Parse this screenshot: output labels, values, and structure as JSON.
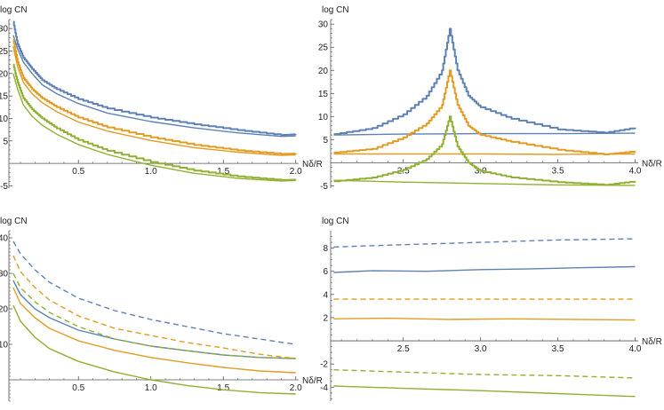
{
  "colors": {
    "blue": "#5e81b5",
    "orange": "#e19c24",
    "green": "#8fb032",
    "axis": "#555555"
  },
  "chart_data": [
    {
      "type": "line",
      "panel": "top-left",
      "title": "",
      "xlabel": "Nδ/R",
      "ylabel": "log CN",
      "xlim": [
        0.02,
        2.02
      ],
      "ylim": [
        -5.5,
        32
      ],
      "xticks": [
        0.5,
        1.0,
        1.5,
        2.0
      ],
      "xticklabels": [
        "0.5",
        "1.0",
        "1.5",
        "2.0"
      ],
      "yticks": [
        -5,
        5,
        10,
        15,
        20,
        25,
        30
      ],
      "yticklabels": [
        "-5",
        "5",
        "10",
        "15",
        "20",
        "25",
        "30"
      ],
      "grid": false,
      "legend": "none",
      "series": [
        {
          "color": "blue",
          "style": "step",
          "x": [
            0.05,
            0.08,
            0.12,
            0.18,
            0.25,
            0.35,
            0.5,
            0.7,
            1.0,
            1.3,
            1.6,
            1.9,
            2.0
          ],
          "y": [
            31.5,
            26.5,
            23.5,
            21,
            18.5,
            16.5,
            14.3,
            12.2,
            10.2,
            8.7,
            7.4,
            6.3,
            6.5
          ]
        },
        {
          "color": "blue",
          "style": "solid",
          "x": [
            0.05,
            0.08,
            0.12,
            0.18,
            0.25,
            0.35,
            0.5,
            0.7,
            1.0,
            1.3,
            1.6,
            1.9,
            2.0
          ],
          "y": [
            28.5,
            25.5,
            22.5,
            20,
            17.5,
            15.5,
            13.3,
            11.2,
            9.3,
            7.9,
            6.8,
            6.0,
            6.1
          ]
        },
        {
          "color": "orange",
          "style": "step",
          "x": [
            0.05,
            0.08,
            0.12,
            0.18,
            0.25,
            0.35,
            0.5,
            0.7,
            1.0,
            1.3,
            1.6,
            1.9,
            2.0
          ],
          "y": [
            27.5,
            22.5,
            19,
            16.5,
            14.5,
            12.5,
            10.2,
            8.0,
            5.8,
            4.1,
            2.9,
            2.1,
            2.2
          ]
        },
        {
          "color": "orange",
          "style": "solid",
          "x": [
            0.05,
            0.08,
            0.12,
            0.18,
            0.25,
            0.35,
            0.5,
            0.7,
            1.0,
            1.3,
            1.6,
            1.9,
            2.0
          ],
          "y": [
            26,
            21.5,
            18,
            15.5,
            13.5,
            11.5,
            9.2,
            7.2,
            5.1,
            3.5,
            2.5,
            1.8,
            1.9
          ]
        },
        {
          "color": "green",
          "style": "step",
          "x": [
            0.05,
            0.08,
            0.12,
            0.18,
            0.25,
            0.35,
            0.5,
            0.7,
            1.0,
            1.3,
            1.6,
            1.9,
            2.0
          ],
          "y": [
            22,
            18,
            14.5,
            12,
            10,
            7.8,
            5.2,
            2.8,
            0.3,
            -1.6,
            -2.9,
            -3.7,
            -3.6
          ]
        },
        {
          "color": "green",
          "style": "solid",
          "x": [
            0.05,
            0.08,
            0.12,
            0.18,
            0.25,
            0.35,
            0.5,
            0.7,
            1.0,
            1.3,
            1.6,
            1.9,
            2.0
          ],
          "y": [
            20,
            16.5,
            13,
            10.5,
            8.5,
            6.5,
            4.2,
            2.0,
            -0.4,
            -2.2,
            -3.3,
            -3.9,
            -3.8
          ]
        }
      ]
    },
    {
      "type": "line",
      "panel": "top-right",
      "title": "",
      "xlabel": "Nδ/R",
      "ylabel": "log CN",
      "xlim": [
        2.03,
        4.02
      ],
      "ylim": [
        -5.5,
        31
      ],
      "xticks": [
        2.5,
        3.0,
        3.5,
        4.0
      ],
      "xticklabels": [
        "2.5",
        "3.0",
        "3.5",
        "4.0"
      ],
      "yticks": [
        -5,
        5,
        10,
        15,
        20,
        25,
        30
      ],
      "yticklabels": [
        "-5",
        "5",
        "10",
        "15",
        "20",
        "25",
        "30"
      ],
      "grid": false,
      "legend": "none",
      "series": [
        {
          "color": "blue",
          "style": "step",
          "x": [
            2.05,
            2.3,
            2.5,
            2.65,
            2.75,
            2.8,
            2.85,
            2.92,
            3.0,
            3.2,
            3.5,
            3.8,
            4.0
          ],
          "y": [
            6.2,
            7.5,
            10.5,
            14.5,
            20,
            29,
            20,
            14.5,
            12,
            9.5,
            7.2,
            6.5,
            7.6
          ]
        },
        {
          "color": "blue",
          "style": "solid",
          "x": [
            2.05,
            2.5,
            3.0,
            3.5,
            4.0
          ],
          "y": [
            6.0,
            6.2,
            6.3,
            6.3,
            6.4
          ]
        },
        {
          "color": "orange",
          "style": "step",
          "x": [
            2.05,
            2.3,
            2.5,
            2.65,
            2.75,
            2.8,
            2.85,
            2.92,
            3.0,
            3.2,
            3.5,
            3.8,
            4.0
          ],
          "y": [
            2.2,
            3.0,
            5.5,
            8.5,
            12.5,
            20,
            12.5,
            8.0,
            6.0,
            4.5,
            2.8,
            1.8,
            2.5
          ]
        },
        {
          "color": "orange",
          "style": "solid",
          "x": [
            2.05,
            2.5,
            3.0,
            3.5,
            4.0
          ],
          "y": [
            1.9,
            1.9,
            1.9,
            1.8,
            1.9
          ]
        },
        {
          "color": "green",
          "style": "step",
          "x": [
            2.05,
            2.3,
            2.5,
            2.65,
            2.75,
            2.8,
            2.85,
            2.92,
            3.0,
            3.2,
            3.5,
            3.8,
            4.0
          ],
          "y": [
            -4.0,
            -3.2,
            -1.5,
            0.8,
            4.0,
            10,
            3.5,
            0.0,
            -1.8,
            -3.2,
            -4.2,
            -4.8,
            -4.0
          ]
        },
        {
          "color": "green",
          "style": "solid",
          "x": [
            2.05,
            2.5,
            3.0,
            3.5,
            4.0
          ],
          "y": [
            -3.8,
            -4.2,
            -4.5,
            -4.8,
            -4.9
          ]
        }
      ]
    },
    {
      "type": "line",
      "panel": "bottom-left",
      "title": "",
      "xlabel": "Nδ/R",
      "ylabel": "log CN",
      "xlim": [
        0.02,
        2.02
      ],
      "ylim": [
        -6,
        42
      ],
      "xticks": [
        0.5,
        1.0,
        1.5,
        2.0
      ],
      "xticklabels": [
        "0.5",
        "1.0",
        "1.5",
        "2.0"
      ],
      "yticks": [
        10,
        20,
        30,
        40
      ],
      "yticklabels": [
        "10",
        "20",
        "30",
        "40"
      ],
      "grid": false,
      "legend": "none",
      "series": [
        {
          "color": "blue",
          "style": "dashed",
          "x": [
            0.05,
            0.1,
            0.2,
            0.3,
            0.5,
            0.75,
            1.0,
            1.25,
            1.5,
            1.75,
            2.0
          ],
          "y": [
            39,
            35.5,
            31,
            27.5,
            23,
            19.5,
            17,
            15,
            13,
            11.5,
            10
          ]
        },
        {
          "color": "blue",
          "style": "solid",
          "x": [
            0.05,
            0.1,
            0.2,
            0.3,
            0.5,
            0.75,
            1.0,
            1.25,
            1.5,
            1.75,
            2.0
          ],
          "y": [
            28,
            24,
            20,
            17.5,
            14,
            11.5,
            9.5,
            8.2,
            7,
            6.3,
            6
          ]
        },
        {
          "color": "orange",
          "style": "dashed",
          "x": [
            0.05,
            0.1,
            0.2,
            0.3,
            0.5,
            0.75,
            1.0,
            1.25,
            1.5,
            1.75,
            2.0
          ],
          "y": [
            35,
            30.5,
            26,
            22.5,
            18,
            14.5,
            12.5,
            10.5,
            9,
            7.2,
            6
          ]
        },
        {
          "color": "orange",
          "style": "solid",
          "x": [
            0.05,
            0.1,
            0.2,
            0.3,
            0.5,
            0.75,
            1.0,
            1.25,
            1.5,
            1.75,
            2.0
          ],
          "y": [
            26,
            21.5,
            17.5,
            14.5,
            11,
            8.3,
            6.3,
            4.8,
            3.5,
            2.5,
            2
          ]
        },
        {
          "color": "green",
          "style": "dashed",
          "x": [
            0.05,
            0.1,
            0.2,
            0.3,
            0.5,
            0.75,
            1.0,
            1.25,
            1.5,
            1.75,
            2.0
          ],
          "y": [
            30,
            26,
            22,
            19,
            15,
            11.5,
            9.5,
            8.2,
            7,
            6.3,
            6
          ]
        },
        {
          "color": "green",
          "style": "solid",
          "x": [
            0.05,
            0.1,
            0.2,
            0.3,
            0.5,
            0.75,
            1.0,
            1.25,
            1.5,
            1.75,
            2.0
          ],
          "y": [
            21,
            16.5,
            12,
            8.8,
            5.2,
            2.2,
            0,
            -1.6,
            -2.8,
            -3.6,
            -4
          ]
        }
      ]
    },
    {
      "type": "line",
      "panel": "bottom-right",
      "title": "",
      "xlabel": "Nδ/R",
      "ylabel": "log CN",
      "xlim": [
        2.03,
        4.02
      ],
      "ylim": [
        -5.2,
        9.5
      ],
      "xticks": [
        2.5,
        3.0,
        3.5,
        4.0
      ],
      "xticklabels": [
        "2.5",
        "3.0",
        "3.5",
        "4.0"
      ],
      "yticks": [
        -4,
        -2,
        2,
        4,
        6,
        8
      ],
      "yticklabels": [
        "-4",
        "-2",
        "2",
        "4",
        "6",
        "8"
      ],
      "grid": false,
      "legend": "none",
      "series": [
        {
          "color": "blue",
          "style": "dashed",
          "x": [
            2.05,
            2.5,
            3.0,
            3.5,
            4.0
          ],
          "y": [
            8.1,
            8.3,
            8.5,
            8.7,
            8.8
          ]
        },
        {
          "color": "blue",
          "style": "solid",
          "x": [
            2.05,
            2.3,
            2.65,
            3.0,
            3.3,
            3.6,
            4.0
          ],
          "y": [
            5.9,
            6.05,
            6.0,
            6.15,
            6.2,
            6.3,
            6.4
          ]
        },
        {
          "color": "orange",
          "style": "dashed",
          "x": [
            2.05,
            2.5,
            3.0,
            3.5,
            4.0
          ],
          "y": [
            3.6,
            3.6,
            3.6,
            3.6,
            3.6
          ]
        },
        {
          "color": "orange",
          "style": "solid",
          "x": [
            2.05,
            2.4,
            2.8,
            3.2,
            3.6,
            4.0
          ],
          "y": [
            1.9,
            1.95,
            1.85,
            1.9,
            1.85,
            1.8
          ]
        },
        {
          "color": "green",
          "style": "dashed",
          "x": [
            2.05,
            2.5,
            3.0,
            3.5,
            4.0
          ],
          "y": [
            -2.5,
            -2.7,
            -2.9,
            -3.0,
            -3.2
          ]
        },
        {
          "color": "green",
          "style": "solid",
          "x": [
            2.05,
            2.5,
            3.0,
            3.5,
            4.0
          ],
          "y": [
            -3.9,
            -4.1,
            -4.3,
            -4.55,
            -4.8
          ]
        }
      ]
    }
  ]
}
